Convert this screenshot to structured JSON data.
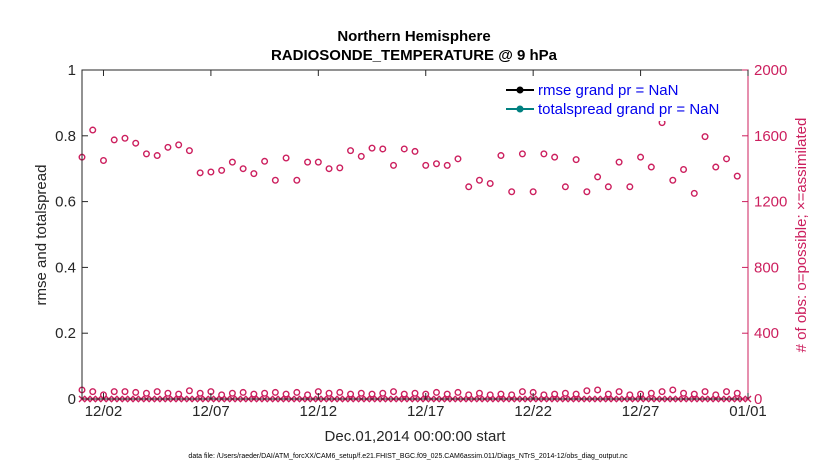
{
  "chart_data": {
    "type": "scatter",
    "title": "Northern Hemisphere",
    "subtitle": "RADIOSONDE_TEMPERATURE @ 9 hPa",
    "xlabel": "Dec.01,2014 00:00:00 start",
    "ylabel_left": "rmse and totalspread",
    "ylabel_right": "# of obs: o=possible; ×=assimilated",
    "xlim": [
      0,
      31
    ],
    "ylim_left": [
      0,
      1
    ],
    "ylim_right": [
      0,
      2000
    ],
    "x_tick_values": [
      1,
      6,
      11,
      16,
      21,
      26,
      31
    ],
    "x_tick_labels": [
      "12/02",
      "12/07",
      "12/12",
      "12/17",
      "12/22",
      "12/27",
      "01/01"
    ],
    "y_left_ticks": [
      "0",
      "0.2",
      "0.4",
      "0.6",
      "0.8",
      "1"
    ],
    "y_right_ticks": [
      "0",
      "400",
      "800",
      "1200",
      "1600",
      "2000"
    ],
    "legend": {
      "position": "top-right",
      "entries": [
        {
          "label": "rmse grand pr = NaN",
          "color": "#000000"
        },
        {
          "label": "totalspread grand pr = NaN",
          "color": "#008080"
        }
      ]
    },
    "series": [
      {
        "name": "possible",
        "marker": "circle",
        "color": "#cc1f5e",
        "axis": "right",
        "x": [
          0,
          0.5,
          1,
          1.5,
          2,
          2.5,
          3,
          3.5,
          4,
          4.5,
          5,
          5.5,
          6,
          6.5,
          7,
          7.5,
          8,
          8.5,
          9,
          9.5,
          10,
          10.5,
          11,
          11.5,
          12,
          12.5,
          13,
          13.5,
          14,
          14.5,
          15,
          15.5,
          16,
          16.5,
          17,
          17.5,
          18,
          18.5,
          19,
          19.5,
          20,
          20.5,
          21,
          21.5,
          22,
          22.5,
          23,
          23.5,
          24,
          24.5,
          25,
          25.5,
          26,
          26.5,
          27,
          27.5,
          28,
          28.5,
          29,
          29.5,
          30,
          30.5
        ],
        "y": [
          1470,
          1635,
          1450,
          1575,
          1585,
          1555,
          1490,
          1480,
          1530,
          1545,
          1510,
          1375,
          1380,
          1390,
          1440,
          1400,
          1370,
          1445,
          1330,
          1465,
          1330,
          1440,
          1440,
          1400,
          1405,
          1510,
          1475,
          1525,
          1520,
          1420,
          1520,
          1505,
          1420,
          1430,
          1420,
          1460,
          1290,
          1330,
          1310,
          1480,
          1260,
          1490,
          1260,
          1490,
          1470,
          1290,
          1455,
          1260,
          1350,
          1290,
          1440,
          1290,
          1470,
          1410,
          1680,
          1330,
          1395,
          1250,
          1595,
          1410,
          1460,
          1355
        ],
        "baseline_y": [
          55,
          45,
          25,
          45,
          45,
          40,
          35,
          45,
          35,
          30,
          50,
          35,
          45,
          25,
          35,
          40,
          30,
          35,
          40,
          30,
          40,
          25,
          45,
          35,
          40,
          30,
          35,
          30,
          35,
          45,
          30,
          35,
          30,
          40,
          30,
          40,
          25,
          35,
          25,
          30,
          25,
          45,
          40,
          25,
          30,
          35,
          30,
          50,
          55,
          30,
          45,
          25,
          30,
          35,
          45,
          55,
          35,
          30,
          45,
          25,
          45,
          35
        ]
      },
      {
        "name": "assimilated",
        "marker": "x",
        "color": "#cc1f5e",
        "axis": "right",
        "note": "all near zero"
      },
      {
        "name": "rmse",
        "color": "#000000",
        "axis": "left",
        "values": "NaN"
      },
      {
        "name": "totalspread",
        "color": "#008080",
        "axis": "left",
        "values": "NaN"
      }
    ]
  },
  "footer": "data file: /Users/raeder/DAI/ATM_forcXX/CAM6_setup/f.e21.FHIST_BGC.f09_025.CAM6assim.011/Diags_NTrS_2014-12/obs_diag_output.nc"
}
